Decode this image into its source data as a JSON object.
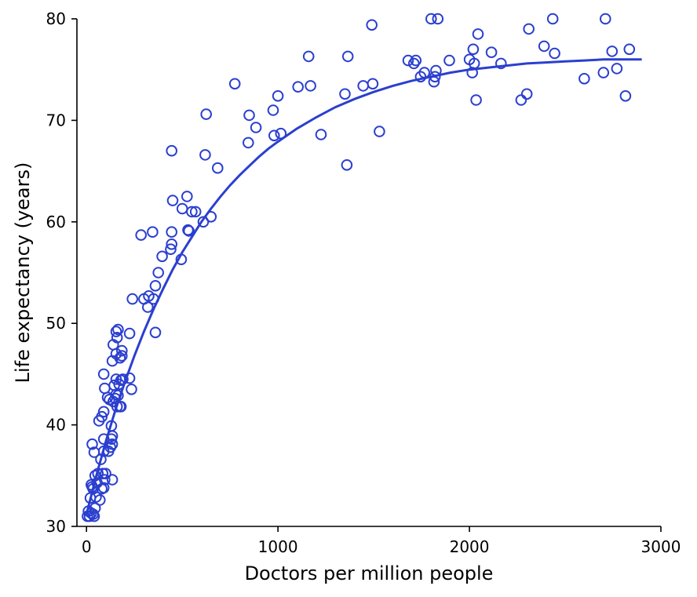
{
  "chart_data": {
    "type": "scatter",
    "title": "",
    "xlabel": "Doctors per million people",
    "ylabel": "Life expectancy (years)",
    "xlim": [
      -50,
      3000
    ],
    "ylim": [
      30,
      80
    ],
    "xticks": [
      0,
      1000,
      2000,
      3000
    ],
    "xtick_labels": [
      "0",
      "1000",
      "2000",
      "3000"
    ],
    "yticks": [
      30,
      40,
      50,
      60,
      70,
      80
    ],
    "ytick_labels": [
      "30",
      "40",
      "50",
      "60",
      "70",
      "80"
    ],
    "grid": false,
    "color": "#2b3fcf",
    "points": [
      [
        5,
        31
      ],
      [
        10,
        31.5
      ],
      [
        15,
        31
      ],
      [
        25,
        31.3
      ],
      [
        35,
        31.2
      ],
      [
        40,
        31
      ],
      [
        20,
        32.8
      ],
      [
        30,
        33.9
      ],
      [
        50,
        32.9
      ],
      [
        45,
        31.8
      ],
      [
        25,
        34.1
      ],
      [
        35,
        33.7
      ],
      [
        55,
        34.3
      ],
      [
        70,
        32.6
      ],
      [
        45,
        35
      ],
      [
        60,
        35.2
      ],
      [
        80,
        33.7
      ],
      [
        90,
        33.8
      ],
      [
        85,
        35.2
      ],
      [
        95,
        34.6
      ],
      [
        135,
        34.6
      ],
      [
        100,
        35.2
      ],
      [
        75,
        36.6
      ],
      [
        40,
        37.3
      ],
      [
        30,
        38.1
      ],
      [
        90,
        37.4
      ],
      [
        115,
        37.4
      ],
      [
        125,
        37.8
      ],
      [
        135,
        38.1
      ],
      [
        90,
        38.6
      ],
      [
        130,
        38.6
      ],
      [
        135,
        38.9
      ],
      [
        130,
        39.9
      ],
      [
        65,
        40.4
      ],
      [
        80,
        40.8
      ],
      [
        90,
        41.3
      ],
      [
        120,
        42.5
      ],
      [
        140,
        42.3
      ],
      [
        150,
        42.6
      ],
      [
        110,
        42.7
      ],
      [
        155,
        43
      ],
      [
        165,
        42.9
      ],
      [
        175,
        41.8
      ],
      [
        180,
        41.8
      ],
      [
        160,
        41.8
      ],
      [
        95,
        43.6
      ],
      [
        170,
        44
      ],
      [
        145,
        43.9
      ],
      [
        155,
        44.5
      ],
      [
        190,
        44.5
      ],
      [
        225,
        44.6
      ],
      [
        235,
        43.5
      ],
      [
        180,
        44.4
      ],
      [
        90,
        45
      ],
      [
        135,
        46.3
      ],
      [
        175,
        46.6
      ],
      [
        155,
        47
      ],
      [
        185,
        46.8
      ],
      [
        140,
        47.9
      ],
      [
        185,
        47.3
      ],
      [
        160,
        48.6
      ],
      [
        225,
        49
      ],
      [
        155,
        49.2
      ],
      [
        165,
        49.4
      ],
      [
        360,
        49.1
      ],
      [
        320,
        51.6
      ],
      [
        350,
        52.4
      ],
      [
        300,
        52.4
      ],
      [
        240,
        52.4
      ],
      [
        325,
        52.7
      ],
      [
        360,
        53.7
      ],
      [
        375,
        55
      ],
      [
        395,
        56.6
      ],
      [
        440,
        57.3
      ],
      [
        445,
        57.8
      ],
      [
        445,
        59
      ],
      [
        285,
        58.7
      ],
      [
        345,
        59
      ],
      [
        530,
        59.2
      ],
      [
        535,
        59.1
      ],
      [
        610,
        60
      ],
      [
        650,
        60.5
      ],
      [
        570,
        61
      ],
      [
        550,
        61
      ],
      [
        500,
        61.3
      ],
      [
        525,
        62.5
      ],
      [
        450,
        62.1
      ],
      [
        495,
        56.3
      ],
      [
        620,
        66.6
      ],
      [
        685,
        65.3
      ],
      [
        445,
        67
      ],
      [
        625,
        70.6
      ],
      [
        775,
        73.6
      ],
      [
        850,
        70.5
      ],
      [
        845,
        67.8
      ],
      [
        885,
        69.3
      ],
      [
        975,
        71
      ],
      [
        980,
        68.5
      ],
      [
        1000,
        72.4
      ],
      [
        1015,
        68.7
      ],
      [
        1105,
        73.3
      ],
      [
        1160,
        76.3
      ],
      [
        1170,
        73.4
      ],
      [
        1225,
        68.6
      ],
      [
        1350,
        72.6
      ],
      [
        1360,
        65.6
      ],
      [
        1365,
        76.3
      ],
      [
        1445,
        73.4
      ],
      [
        1495,
        73.6
      ],
      [
        1490,
        79.4
      ],
      [
        1530,
        68.9
      ],
      [
        1680,
        75.9
      ],
      [
        1710,
        75.6
      ],
      [
        1720,
        75.9
      ],
      [
        1745,
        74.3
      ],
      [
        1765,
        74.7
      ],
      [
        1800,
        80
      ],
      [
        1815,
        73.8
      ],
      [
        1820,
        74.3
      ],
      [
        1825,
        74.9
      ],
      [
        1835,
        80
      ],
      [
        1895,
        75.9
      ],
      [
        2000,
        76
      ],
      [
        2015,
        74.7
      ],
      [
        2020,
        77
      ],
      [
        2025,
        75.6
      ],
      [
        2035,
        72
      ],
      [
        2045,
        78.5
      ],
      [
        2115,
        76.7
      ],
      [
        2165,
        75.6
      ],
      [
        2270,
        72
      ],
      [
        2300,
        72.6
      ],
      [
        2310,
        79
      ],
      [
        2390,
        77.3
      ],
      [
        2435,
        80
      ],
      [
        2445,
        76.6
      ],
      [
        2600,
        74.1
      ],
      [
        2700,
        74.7
      ],
      [
        2710,
        80
      ],
      [
        2745,
        76.8
      ],
      [
        2770,
        75.1
      ],
      [
        2815,
        72.4
      ],
      [
        2835,
        77
      ]
    ],
    "fit_curve": [
      [
        0,
        31.2
      ],
      [
        50,
        34.9
      ],
      [
        100,
        38.3
      ],
      [
        150,
        41.4
      ],
      [
        200,
        44.2
      ],
      [
        250,
        46.8
      ],
      [
        300,
        49.2
      ],
      [
        350,
        51.4
      ],
      [
        400,
        53.4
      ],
      [
        450,
        55.3
      ],
      [
        500,
        57
      ],
      [
        550,
        58.5
      ],
      [
        600,
        60
      ],
      [
        650,
        61.3
      ],
      [
        700,
        62.5
      ],
      [
        750,
        63.6
      ],
      [
        800,
        64.6
      ],
      [
        850,
        65.5
      ],
      [
        900,
        66.4
      ],
      [
        950,
        67.2
      ],
      [
        1000,
        67.9
      ],
      [
        1100,
        69.2
      ],
      [
        1200,
        70.3
      ],
      [
        1300,
        71.3
      ],
      [
        1400,
        72.1
      ],
      [
        1500,
        72.8
      ],
      [
        1600,
        73.4
      ],
      [
        1700,
        73.9
      ],
      [
        1800,
        74.3
      ],
      [
        1900,
        74.7
      ],
      [
        2000,
        75
      ],
      [
        2100,
        75.2
      ],
      [
        2200,
        75.4
      ],
      [
        2300,
        75.6
      ],
      [
        2400,
        75.7
      ],
      [
        2500,
        75.8
      ],
      [
        2600,
        75.9
      ],
      [
        2700,
        76
      ],
      [
        2800,
        76
      ],
      [
        2900,
        76
      ]
    ]
  }
}
